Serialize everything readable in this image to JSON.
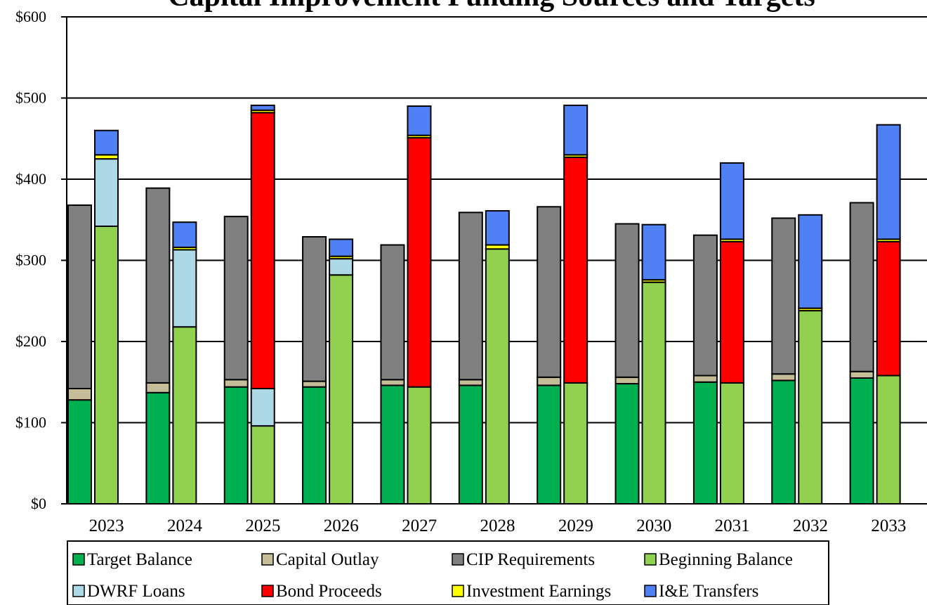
{
  "chart_data": {
    "type": "bar",
    "title": "Capital Improvement Funding Sources and Targets",
    "xlabel": "",
    "ylabel": "",
    "ylim": [
      0,
      600
    ],
    "yticks": [
      "$0",
      "$100",
      "$200",
      "$300",
      "$400",
      "$500",
      "$600"
    ],
    "categories": [
      "2023",
      "2024",
      "2025",
      "2026",
      "2027",
      "2028",
      "2029",
      "2030",
      "2031",
      "2032",
      "2033"
    ],
    "grid": true,
    "legend_position": "bottom",
    "stacks": [
      {
        "name": "requirements",
        "series": [
          {
            "name": "Target Balance",
            "color": "#00b050",
            "values": [
              128,
              137,
              144,
              144,
              146,
              146,
              146,
              148,
              150,
              152,
              155
            ]
          },
          {
            "name": "Capital Outlay",
            "color": "#c4bd97",
            "values": [
              14,
              12,
              9,
              7,
              7,
              7,
              10,
              8,
              8,
              8,
              8
            ]
          },
          {
            "name": "CIP Requirements",
            "color": "#808080",
            "values": [
              226,
              240,
              201,
              178,
              166,
              206,
              210,
              189,
              173,
              192,
              208
            ]
          }
        ]
      },
      {
        "name": "sources",
        "series": [
          {
            "name": "Beginning Balance",
            "color": "#92d050",
            "values": [
              342,
              218,
              96,
              282,
              144,
              314,
              149,
              273,
              149,
              238,
              158
            ]
          },
          {
            "name": "DWRF Loans",
            "color": "#add8e6",
            "values": [
              83,
              95,
              46,
              20,
              0,
              0,
              0,
              0,
              0,
              0,
              0
            ]
          },
          {
            "name": "Bond Proceeds",
            "color": "#ff0000",
            "values": [
              0,
              0,
              340,
              0,
              307,
              0,
              278,
              0,
              174,
              0,
              165
            ]
          },
          {
            "name": "Investment Earnings",
            "color": "#ffff00",
            "values": [
              5,
              3,
              3,
              3,
              3,
              5,
              3,
              3,
              3,
              3,
              3
            ]
          },
          {
            "name": "I&E Transfers",
            "color": "#4f81f5",
            "values": [
              30,
              31,
              6,
              21,
              36,
              42,
              61,
              68,
              94,
              115,
              141
            ]
          }
        ]
      }
    ],
    "legend": [
      {
        "label": "Target Balance",
        "color": "#00b050"
      },
      {
        "label": "Capital Outlay",
        "color": "#c4bd97"
      },
      {
        "label": "CIP Requirements",
        "color": "#808080"
      },
      {
        "label": "Beginning Balance",
        "color": "#92d050"
      },
      {
        "label": "DWRF Loans",
        "color": "#add8e6"
      },
      {
        "label": "Bond Proceeds",
        "color": "#ff0000"
      },
      {
        "label": "Investment Earnings",
        "color": "#ffff00"
      },
      {
        "label": "I&E Transfers",
        "color": "#4f81f5"
      }
    ]
  }
}
